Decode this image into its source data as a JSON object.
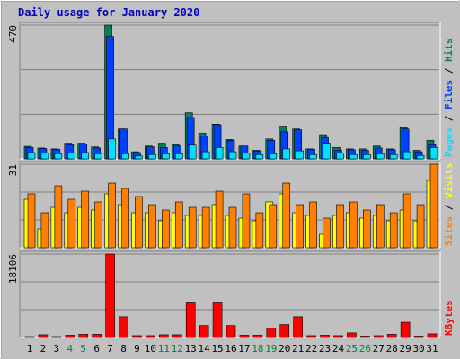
{
  "title": "Daily usage for January 2020",
  "legend_separator": " / ",
  "highlight_color": "#008040",
  "chart_data": [
    {
      "type": "bar",
      "ylim": [
        0,
        470
      ],
      "yticks": [
        470
      ],
      "grid": true,
      "series": [
        {
          "name": "Pages",
          "color": "#00e0ff",
          "values": [
            22,
            20,
            18,
            20,
            22,
            18,
            70,
            18,
            10,
            15,
            18,
            18,
            48,
            25,
            40,
            25,
            20,
            15,
            18,
            35,
            28,
            15,
            55,
            20,
            15,
            15,
            18,
            15,
            25,
            12,
            40
          ]
        },
        {
          "name": "Files",
          "color": "#0040ff",
          "values": [
            40,
            36,
            33,
            50,
            52,
            38,
            430,
            105,
            22,
            42,
            40,
            45,
            145,
            80,
            120,
            65,
            45,
            28,
            65,
            95,
            102,
            33,
            75,
            30,
            32,
            30,
            38,
            32,
            105,
            25,
            50
          ]
        },
        {
          "name": "Hits",
          "color": "#00805c",
          "values": [
            44,
            38,
            35,
            55,
            55,
            42,
            470,
            105,
            25,
            45,
            55,
            50,
            162,
            90,
            122,
            68,
            45,
            30,
            70,
            115,
            105,
            35,
            85,
            40,
            35,
            35,
            45,
            35,
            110,
            30,
            65
          ]
        }
      ]
    },
    {
      "type": "bar",
      "ylim": [
        0,
        31
      ],
      "yticks": [
        31
      ],
      "grid": true,
      "series": [
        {
          "name": "Sites",
          "color": "#ff8000",
          "values": [
            20,
            13,
            23,
            18,
            21,
            17,
            24,
            22,
            19,
            16,
            14,
            17,
            15,
            15,
            21,
            15,
            20,
            13,
            16,
            24,
            16,
            17,
            11,
            16,
            17,
            14,
            16,
            13,
            20,
            16,
            31
          ]
        },
        {
          "name": "Visits",
          "color": "#ffff00",
          "values": [
            18,
            7,
            15,
            13,
            15,
            14,
            20,
            16,
            13,
            13,
            10,
            13,
            12,
            12,
            16,
            12,
            11,
            10,
            17,
            20,
            13,
            12,
            5,
            12,
            13,
            11,
            12,
            10,
            14,
            10,
            25
          ]
        }
      ]
    },
    {
      "type": "bar",
      "ylim": [
        0,
        18106
      ],
      "yticks": [
        18106
      ],
      "grid": true,
      "categories": [
        "1",
        "2",
        "3",
        "4",
        "5",
        "6",
        "7",
        "8",
        "9",
        "10",
        "11",
        "12",
        "13",
        "14",
        "15",
        "16",
        "17",
        "18",
        "19",
        "20",
        "21",
        "22",
        "23",
        "24",
        "25",
        "26",
        "27",
        "28",
        "29",
        "30",
        "31"
      ],
      "highlighted_categories": [
        3,
        4,
        10,
        11,
        17,
        18,
        24,
        25
      ],
      "series": [
        {
          "name": "KBytes",
          "color": "#ff0000",
          "values": [
            200,
            600,
            200,
            500,
            700,
            700,
            18106,
            4500,
            400,
            400,
            600,
            600,
            7500,
            2600,
            7500,
            2600,
            500,
            500,
            2000,
            2800,
            4500,
            400,
            500,
            400,
            1000,
            300,
            400,
            700,
            3300,
            300,
            800
          ]
        }
      ]
    }
  ]
}
